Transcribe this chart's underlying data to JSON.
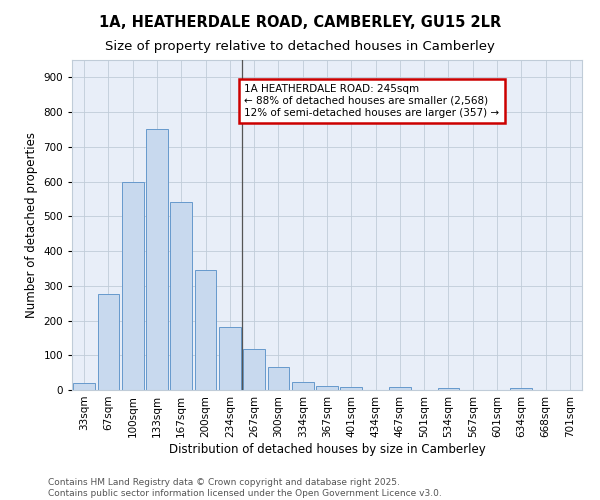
{
  "title_line1": "1A, HEATHERDALE ROAD, CAMBERLEY, GU15 2LR",
  "title_line2": "Size of property relative to detached houses in Camberley",
  "xlabel": "Distribution of detached houses by size in Camberley",
  "ylabel": "Number of detached properties",
  "categories": [
    "33sqm",
    "67sqm",
    "100sqm",
    "133sqm",
    "167sqm",
    "200sqm",
    "234sqm",
    "267sqm",
    "300sqm",
    "334sqm",
    "367sqm",
    "401sqm",
    "434sqm",
    "467sqm",
    "501sqm",
    "534sqm",
    "567sqm",
    "601sqm",
    "634sqm",
    "668sqm",
    "701sqm"
  ],
  "values": [
    20,
    275,
    600,
    750,
    540,
    345,
    180,
    118,
    67,
    22,
    12,
    10,
    0,
    8,
    0,
    7,
    0,
    0,
    5,
    0,
    0
  ],
  "bar_color": "#c8d9ee",
  "bar_edge_color": "#6699cc",
  "vline_color": "#555555",
  "annotation_text": "1A HEATHERDALE ROAD: 245sqm\n← 88% of detached houses are smaller (2,568)\n12% of semi-detached houses are larger (357) →",
  "annotation_box_color": "#ffffff",
  "annotation_box_edge_color": "#cc0000",
  "ylim": [
    0,
    950
  ],
  "yticks": [
    0,
    100,
    200,
    300,
    400,
    500,
    600,
    700,
    800,
    900
  ],
  "background_color": "#e8eef8",
  "grid_color": "#c0ccd8",
  "footer_line1": "Contains HM Land Registry data © Crown copyright and database right 2025.",
  "footer_line2": "Contains public sector information licensed under the Open Government Licence v3.0.",
  "title_fontsize": 10.5,
  "subtitle_fontsize": 9.5,
  "axis_label_fontsize": 8.5,
  "tick_fontsize": 7.5,
  "annotation_fontsize": 7.5,
  "footer_fontsize": 6.5
}
